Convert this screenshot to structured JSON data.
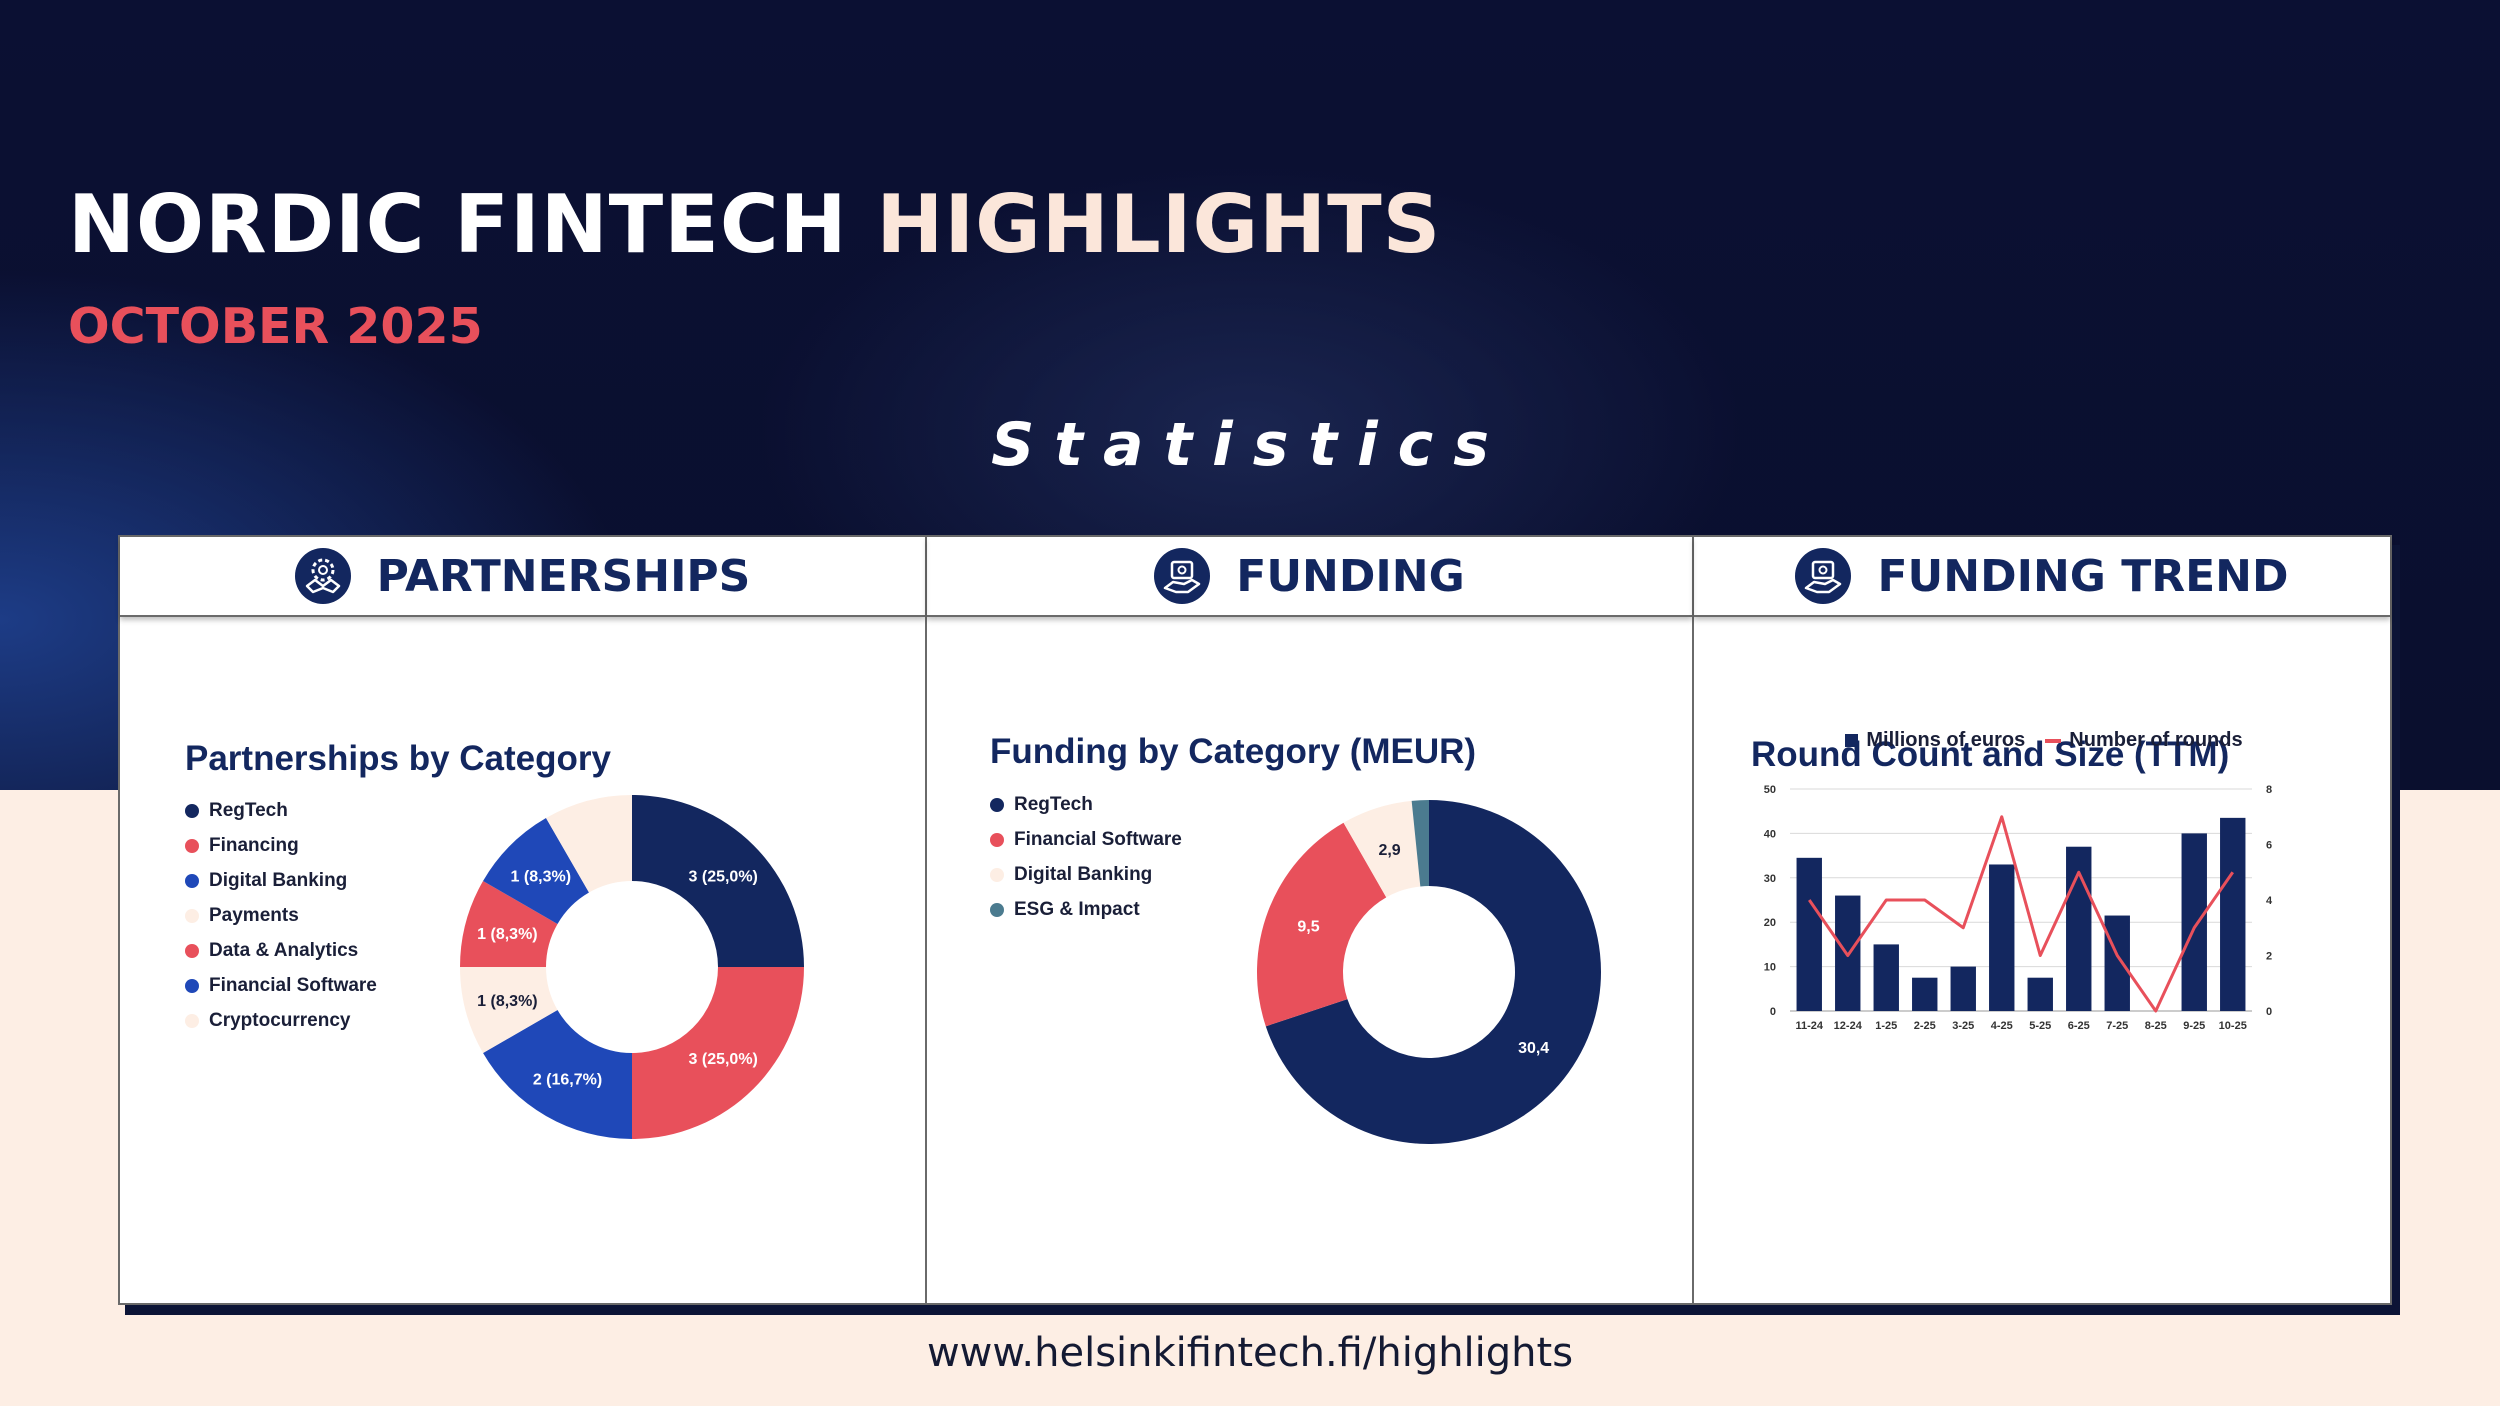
{
  "header": {
    "title_main": "NORDIC FINTECH",
    "title_accent": "HIGHLIGHTS",
    "subtitle": "OCTOBER 2025",
    "section": "Statistics"
  },
  "panels": {
    "partnerships": {
      "heading": "PARTNERSHIPS",
      "icon": "handshake-gear-icon"
    },
    "funding": {
      "heading": "FUNDING",
      "icon": "money-hand-icon"
    },
    "trend": {
      "heading": "FUNDING TREND",
      "icon": "money-hand-icon"
    }
  },
  "footer": {
    "url": "www.helsinkifintech.fi/highlights"
  },
  "colors": {
    "navy": "#13275f",
    "coral": "#e8505b",
    "blue": "#1f48b8",
    "cream": "#fdeee4",
    "teal": "#4b7b8f"
  },
  "chart_data": [
    {
      "type": "pie",
      "title": "Partnerships by Category",
      "legend_position": "left",
      "legend": [
        {
          "name": "RegTech",
          "color": "#13275f"
        },
        {
          "name": "Financing",
          "color": "#e8505b"
        },
        {
          "name": "Digital Banking",
          "color": "#1f48b8"
        },
        {
          "name": "Payments",
          "color": "#fdeee4"
        },
        {
          "name": "Data & Analytics",
          "color": "#e8505b"
        },
        {
          "name": "Financial Software",
          "color": "#1f48b8"
        },
        {
          "name": "Cryptocurrency",
          "color": "#fdeee4"
        }
      ],
      "slices": [
        {
          "value": 3,
          "label": "3 (25,0%)",
          "color": "#13275f",
          "text_color": "#ffffff"
        },
        {
          "value": 3,
          "label": "3 (25,0%)",
          "color": "#e8505b",
          "text_color": "#ffffff"
        },
        {
          "value": 2,
          "label": "2 (16,7%)",
          "color": "#1f48b8",
          "text_color": "#ffffff"
        },
        {
          "value": 1,
          "label": "1 (8,3%)",
          "color": "#fdeee4",
          "text_color": "#1a1f38"
        },
        {
          "value": 1,
          "label": "1 (8,3%)",
          "color": "#e8505b",
          "text_color": "#ffffff"
        },
        {
          "value": 1,
          "label": "1 (8,3%)",
          "color": "#1f48b8",
          "text_color": "#ffffff"
        },
        {
          "value": 1,
          "label": "",
          "color": "#fdeee4",
          "text_color": "#1a1f38"
        }
      ]
    },
    {
      "type": "pie",
      "title": "Funding by Category (MEUR)",
      "legend_position": "left",
      "legend": [
        {
          "name": "RegTech",
          "color": "#13275f"
        },
        {
          "name": "Financial Software",
          "color": "#e8505b"
        },
        {
          "name": "Digital Banking",
          "color": "#fdeee4"
        },
        {
          "name": "ESG & Impact",
          "color": "#4b7b8f"
        }
      ],
      "slices": [
        {
          "value": 30.4,
          "label": "30,4",
          "color": "#13275f",
          "text_color": "#ffffff"
        },
        {
          "value": 9.5,
          "label": "9,5",
          "color": "#e8505b",
          "text_color": "#ffffff"
        },
        {
          "value": 2.9,
          "label": "2,9",
          "color": "#fdeee4",
          "text_color": "#1a1f38"
        },
        {
          "value": 0.7,
          "label": "",
          "color": "#4b7b8f",
          "text_color": "#ffffff"
        }
      ]
    },
    {
      "type": "bar",
      "title": "Round Count and Size (TTM)",
      "legend_position": "top",
      "grid": true,
      "categories": [
        "11-24",
        "12-24",
        "1-25",
        "2-25",
        "3-25",
        "4-25",
        "5-25",
        "6-25",
        "7-25",
        "8-25",
        "9-25",
        "10-25"
      ],
      "series": [
        {
          "name": "Millions of euros",
          "kind": "bar",
          "axis": "left",
          "color": "#13275f",
          "values": [
            34.5,
            26,
            15,
            7.5,
            10,
            33,
            7.5,
            37,
            21.5,
            0,
            40,
            43.5
          ]
        },
        {
          "name": "Number of rounds",
          "kind": "line",
          "axis": "right",
          "color": "#e8505b",
          "values": [
            4,
            2,
            4,
            4,
            3,
            7,
            2,
            5,
            2,
            0,
            3,
            5
          ]
        }
      ],
      "ylim_left": [
        0,
        50
      ],
      "yticks_left": [
        "0",
        "10",
        "20",
        "30",
        "40",
        "50"
      ],
      "ylim_right": [
        0,
        8
      ],
      "yticks_right": [
        "0",
        "2",
        "4",
        "6",
        "8"
      ]
    }
  ]
}
